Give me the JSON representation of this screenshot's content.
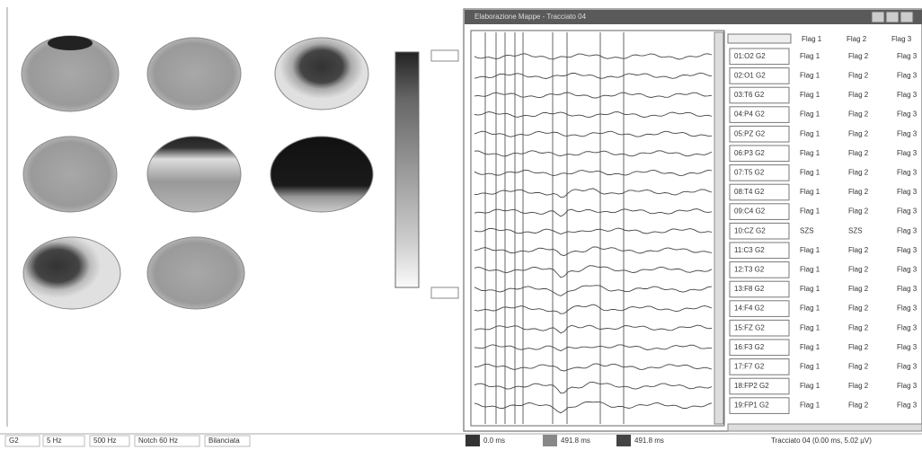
{
  "window": {
    "title": "Elaborazione Mappe - Tracciato 04"
  },
  "status_bar": {
    "items": [
      "G2",
      "5 Hz",
      "500 Hz",
      "Notch 60 Hz",
      "Bilanciata"
    ]
  },
  "timeline": {
    "labels": [
      "0.0 ms",
      "491.8 ms",
      "491.8 ms"
    ]
  },
  "footer": {
    "status": "Tracciato 04 (0.00 ms, 5.02 µV)"
  },
  "flag_headers": [
    "Flag 1",
    "Flag 2",
    "Flag 3"
  ],
  "channels": [
    {
      "label": "01:O2 G2",
      "flags": [
        "Flag 1",
        "Flag 2",
        "Flag 3"
      ]
    },
    {
      "label": "02:O1 G2",
      "flags": [
        "Flag 1",
        "Flag 2",
        "Flag 3"
      ]
    },
    {
      "label": "03:T6 G2",
      "flags": [
        "Flag 1",
        "Flag 2",
        "Flag 3"
      ]
    },
    {
      "label": "04:P4 G2",
      "flags": [
        "Flag 1",
        "Flag 2",
        "Flag 3"
      ]
    },
    {
      "label": "05:PZ G2",
      "flags": [
        "Flag 1",
        "Flag 2",
        "Flag 3"
      ]
    },
    {
      "label": "06:P3 G2",
      "flags": [
        "Flag 1",
        "Flag 2",
        "Flag 3"
      ]
    },
    {
      "label": "07:T5 G2",
      "flags": [
        "Flag 1",
        "Flag 2",
        "Flag 3"
      ]
    },
    {
      "label": "08:T4 G2",
      "flags": [
        "Flag 1",
        "Flag 2",
        "Flag 3"
      ]
    },
    {
      "label": "09:C4 G2",
      "flags": [
        "Flag 1",
        "Flag 2",
        "Flag 3"
      ]
    },
    {
      "label": "10:CZ G2",
      "flags": [
        "SZS",
        "SZS",
        "Flag 3"
      ]
    },
    {
      "label": "11:C3 G2",
      "flags": [
        "Flag 1",
        "Flag 2",
        "Flag 3"
      ]
    },
    {
      "label": "12:T3 G2",
      "flags": [
        "Flag 1",
        "Flag 2",
        "Flag 3"
      ]
    },
    {
      "label": "13:F8 G2",
      "flags": [
        "Flag 1",
        "Flag 2",
        "Flag 3"
      ]
    },
    {
      "label": "14:F4 G2",
      "flags": [
        "Flag 1",
        "Flag 2",
        "Flag 3"
      ]
    },
    {
      "label": "15:FZ G2",
      "flags": [
        "Flag 1",
        "Flag 2",
        "Flag 3"
      ]
    },
    {
      "label": "16:F3 G2",
      "flags": [
        "Flag 1",
        "Flag 2",
        "Flag 3"
      ]
    },
    {
      "label": "17:F7 G2",
      "flags": [
        "Flag 1",
        "Flag 2",
        "Flag 3"
      ]
    },
    {
      "label": "18:FP2 G2",
      "flags": [
        "Flag 1",
        "Flag 2",
        "Flag 3"
      ]
    },
    {
      "label": "19:FP1 G2",
      "flags": [
        "Flag 1",
        "Flag 2",
        "Flag 3"
      ]
    }
  ]
}
